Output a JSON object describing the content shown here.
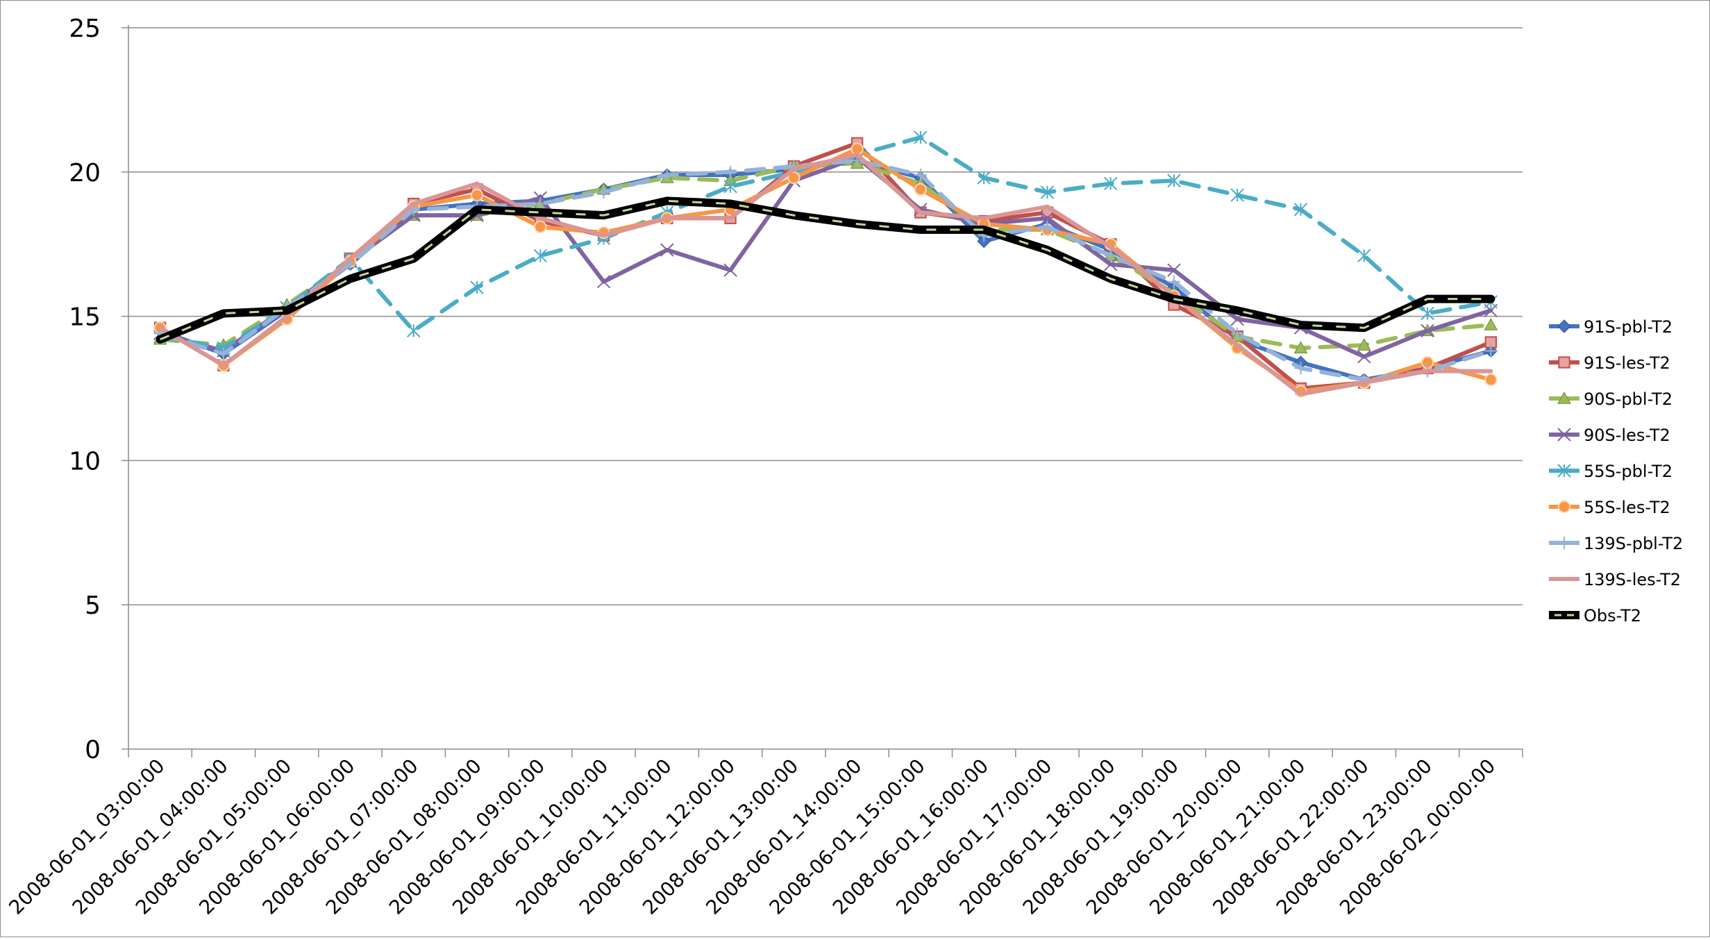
{
  "chart_data": {
    "type": "line",
    "title": "",
    "xlabel": "",
    "ylabel": "",
    "ylim": [
      0,
      25
    ],
    "yticks": [
      0,
      5,
      10,
      15,
      20,
      25
    ],
    "grid": "horizontal",
    "legend_position": "right",
    "categories": [
      "2008-06-01_03:00:00",
      "2008-06-01_04:00:00",
      "2008-06-01_05:00:00",
      "2008-06-01_06:00:00",
      "2008-06-01_07:00:00",
      "2008-06-01_08:00:00",
      "2008-06-01_09:00:00",
      "2008-06-01_10:00:00",
      "2008-06-01_11:00:00",
      "2008-06-01_12:00:00",
      "2008-06-01_13:00:00",
      "2008-06-01_14:00:00",
      "2008-06-01_15:00:00",
      "2008-06-01_16:00:00",
      "2008-06-01_17:00:00",
      "2008-06-01_18:00:00",
      "2008-06-01_19:00:00",
      "2008-06-01_20:00:00",
      "2008-06-01_21:00:00",
      "2008-06-01_22:00:00",
      "2008-06-01_23:00:00",
      "2008-06-02_00:00:00"
    ],
    "series": [
      {
        "name": "91S-pbl-T2",
        "color": "#4472c4",
        "marker": "diamond",
        "dash": "solid",
        "values": [
          14.5,
          13.7,
          15.2,
          16.8,
          18.7,
          18.9,
          19.0,
          19.4,
          19.9,
          19.9,
          20.1,
          20.4,
          19.8,
          17.6,
          18.2,
          17.3,
          16.0,
          14.2,
          13.4,
          12.8,
          13.2,
          13.8
        ]
      },
      {
        "name": "91S-les-T2",
        "color": "#c0504d",
        "marker": "square",
        "dash": "solid",
        "values": [
          14.6,
          13.3,
          15.0,
          17.0,
          18.9,
          19.4,
          18.3,
          17.8,
          18.4,
          18.4,
          20.2,
          21.0,
          18.6,
          18.3,
          18.6,
          17.5,
          15.4,
          14.3,
          12.5,
          12.7,
          13.2,
          14.1
        ]
      },
      {
        "name": "90S-pbl-T2",
        "color": "#9bbb59",
        "marker": "triangle",
        "dash": "dashed",
        "values": [
          14.2,
          14.0,
          15.4,
          16.9,
          18.5,
          18.5,
          18.9,
          19.4,
          19.8,
          19.7,
          20.2,
          20.3,
          19.6,
          18.0,
          18.0,
          17.1,
          15.8,
          14.3,
          13.9,
          14.0,
          14.5,
          14.7
        ]
      },
      {
        "name": "90S-les-T2",
        "color": "#8064a2",
        "marker": "x",
        "dash": "solid",
        "values": [
          14.4,
          13.8,
          15.3,
          16.9,
          18.5,
          18.5,
          19.1,
          16.2,
          17.3,
          16.6,
          19.7,
          20.5,
          18.7,
          18.2,
          18.4,
          16.8,
          16.6,
          14.9,
          14.6,
          13.6,
          14.5,
          15.2
        ]
      },
      {
        "name": "55S-pbl-T2",
        "color": "#4bacc6",
        "marker": "star",
        "dash": "dashed",
        "values": [
          14.3,
          13.9,
          15.3,
          17.0,
          14.5,
          16.0,
          17.1,
          17.7,
          18.6,
          19.5,
          20.0,
          20.6,
          21.2,
          19.8,
          19.3,
          19.6,
          19.7,
          19.2,
          18.7,
          17.1,
          15.1,
          15.5
        ]
      },
      {
        "name": "55S-les-T2",
        "color": "#f79646",
        "marker": "circle",
        "dash": "solid",
        "values": [
          14.6,
          13.3,
          14.9,
          16.9,
          18.8,
          19.2,
          18.1,
          17.9,
          18.4,
          18.7,
          19.8,
          20.8,
          19.4,
          18.2,
          18.0,
          17.5,
          15.7,
          13.9,
          12.4,
          12.7,
          13.4,
          12.8
        ]
      },
      {
        "name": "139S-pbl-T2",
        "color": "#95b3d7",
        "marker": "plus",
        "dash": "dashed",
        "values": [
          14.4,
          13.7,
          15.3,
          16.8,
          18.7,
          18.8,
          18.9,
          19.3,
          19.9,
          20.0,
          20.2,
          20.4,
          19.9,
          17.8,
          18.1,
          17.1,
          16.2,
          14.4,
          13.2,
          12.8,
          13.1,
          13.8
        ]
      },
      {
        "name": "139S-les-T2",
        "color": "#da9694",
        "marker": "none",
        "dash": "solid",
        "values": [
          14.6,
          13.3,
          15.0,
          17.0,
          18.9,
          19.6,
          18.4,
          17.8,
          18.4,
          18.4,
          20.1,
          20.6,
          18.6,
          18.4,
          18.8,
          17.4,
          15.7,
          14.0,
          12.3,
          12.7,
          13.1,
          13.1
        ]
      },
      {
        "name": "Obs-T2",
        "color": "#000000",
        "marker": "none",
        "dash": "solid",
        "overlay_color": "#c4d79b",
        "values": [
          14.2,
          15.1,
          15.2,
          16.3,
          17.0,
          18.7,
          18.6,
          18.5,
          19.0,
          18.9,
          18.5,
          18.2,
          18.0,
          18.0,
          17.3,
          16.3,
          15.6,
          15.2,
          14.7,
          14.6,
          15.6,
          15.6
        ]
      }
    ]
  }
}
